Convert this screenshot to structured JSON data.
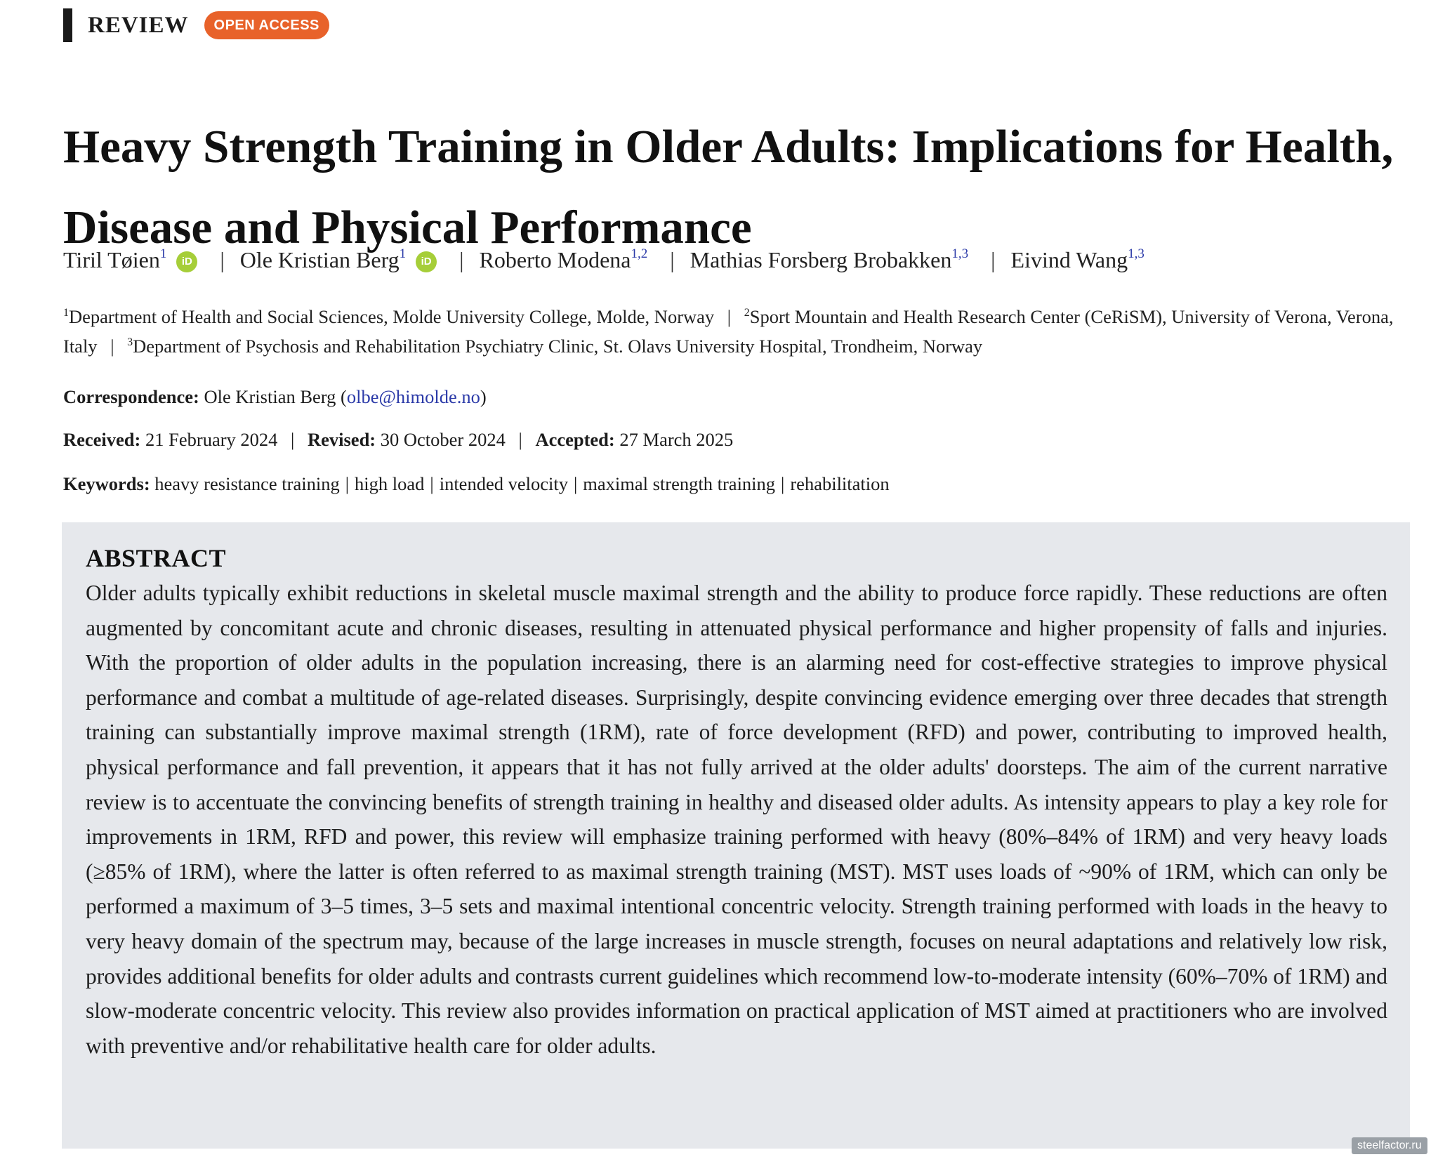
{
  "header": {
    "type_label": "REVIEW",
    "badge": "OPEN ACCESS"
  },
  "title": "Heavy Strength Training in Older Adults: Implications for Health, Disease and Physical Performance",
  "authors": [
    {
      "name": "Tiril Tøien",
      "sup": "1",
      "orcid": true
    },
    {
      "name": "Ole Kristian Berg",
      "sup": "1",
      "orcid": true
    },
    {
      "name": "Roberto Modena",
      "sup": "1,2",
      "orcid": false
    },
    {
      "name": "Mathias Forsberg Brobakken",
      "sup": "1,3",
      "orcid": false
    },
    {
      "name": "Eivind Wang",
      "sup": "1,3",
      "orcid": false
    }
  ],
  "orcid_glyph": "iD",
  "separator": "|",
  "affiliations": [
    {
      "num": "1",
      "text": "Department of Health and Social Sciences, Molde University College, Molde, Norway"
    },
    {
      "num": "2",
      "text": "Sport Mountain and Health Research Center (CeRiSM), University of Verona, Verona, Italy"
    },
    {
      "num": "3",
      "text": "Department of Psychosis and Rehabilitation Psychiatry Clinic, St. Olavs University Hospital, Trondheim, Norway"
    }
  ],
  "correspondence": {
    "label": "Correspondence:",
    "name": "Ole Kristian Berg",
    "email": "olbe@himolde.no"
  },
  "dates": {
    "received_label": "Received:",
    "received": "21 February 2024",
    "revised_label": "Revised:",
    "revised": "30 October 2024",
    "accepted_label": "Accepted:",
    "accepted": "27 March 2025"
  },
  "keywords": {
    "label": "Keywords:",
    "items": [
      "heavy resistance training",
      "high load",
      "intended velocity",
      "maximal strength training",
      "rehabilitation"
    ]
  },
  "abstract": {
    "heading": "ABSTRACT",
    "text": "Older adults typically exhibit reductions in skeletal muscle maximal strength and the ability to produce force rapidly. These reductions are often augmented by concomitant acute and chronic diseases, resulting in attenuated physical performance and higher propensity of falls and injuries. With the proportion of older adults in the population increasing, there is an alarming need for cost-effective strategies to improve physical performance and combat a multitude of age-related diseases. Surprisingly, despite convincing evidence emerging over three decades that strength training can substantially improve maximal strength (1RM), rate of force development (RFD) and power, contributing to improved health, physical performance and fall prevention, it appears that it has not fully arrived at the older adults' doorsteps. The aim of the current narrative review is to accentuate the convincing benefits of strength training in healthy and diseased older adults. As intensity appears to play a key role for improvements in 1RM, RFD and power, this review will emphasize training performed with heavy (80%–84% of 1RM) and very heavy loads (≥85% of 1RM), where the latter is often referred to as maximal strength training (MST). MST uses loads of ~90% of 1RM, which can only be performed a maximum of 3–5 times, 3–5 sets and maximal intentional concentric velocity. Strength training performed with loads in the heavy to very heavy domain of the spectrum may, because of the large increases in muscle strength, focuses on neural adaptations and relatively low risk, provides additional benefits for older adults and contrasts current guidelines which recommend low-to-moderate intensity (60%–70% of 1RM) and slow-moderate concentric velocity. This review also provides information on practical application of MST aimed at practitioners who are involved with preventive and/or rehabilitative health care for older adults."
  },
  "watermark": "steelfactor.ru",
  "colors": {
    "accent": "#e8622a",
    "orcid": "#a6ce39",
    "link": "#2b3aa8",
    "abstract_bg": "#e6e8ec"
  }
}
